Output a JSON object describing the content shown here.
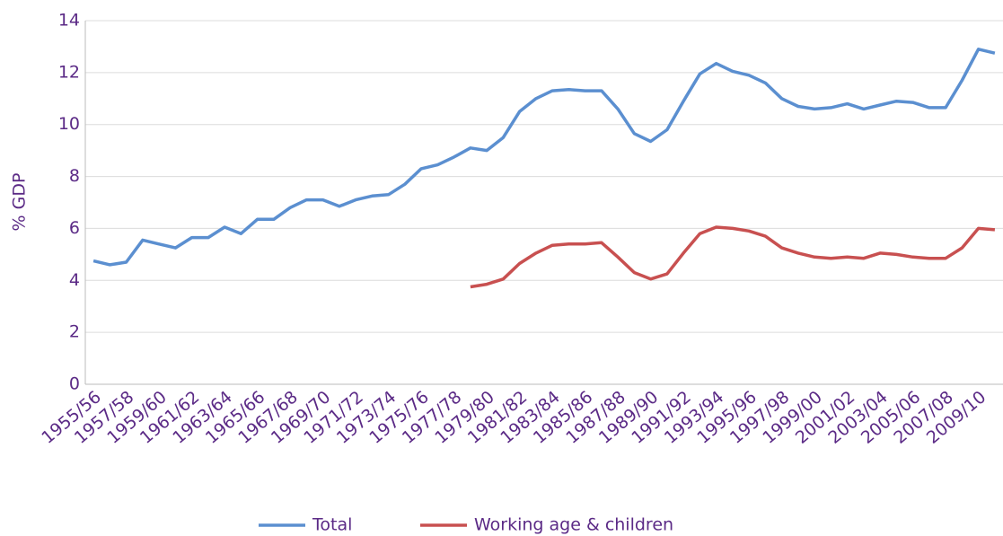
{
  "chart_data": {
    "type": "line",
    "ylabel": "% GDP",
    "categories": [
      "1955/56",
      null,
      "1957/58",
      null,
      "1959/60",
      null,
      "1961/62",
      null,
      "1963/64",
      null,
      "1965/66",
      null,
      "1967/68",
      null,
      "1969/70",
      null,
      "1971/72",
      null,
      "1973/74",
      null,
      "1975/76",
      null,
      "1977/78",
      null,
      "1979/80",
      null,
      "1981/82",
      null,
      "1983/84",
      null,
      "1985/86",
      null,
      "1987/88",
      null,
      "1989/90",
      null,
      "1991/92",
      null,
      "1993/94",
      null,
      "1995/96",
      null,
      "1997/98",
      null,
      "1999/00",
      null,
      "2001/02",
      null,
      "2003/04",
      null,
      "2005/06",
      null,
      "2007/08",
      null,
      "2009/10",
      null
    ],
    "series": [
      {
        "name": "Total",
        "color": "#5b8fd0",
        "values": [
          4.75,
          4.6,
          4.7,
          5.55,
          5.4,
          5.25,
          5.65,
          5.65,
          6.05,
          5.8,
          6.35,
          6.35,
          6.8,
          7.1,
          7.1,
          6.85,
          7.1,
          7.25,
          7.3,
          7.7,
          8.3,
          8.45,
          8.75,
          9.1,
          9.0,
          9.5,
          10.5,
          11.0,
          11.3,
          11.35,
          11.3,
          11.3,
          10.6,
          9.65,
          9.35,
          9.8,
          10.9,
          11.95,
          12.35,
          12.05,
          11.9,
          11.6,
          11.0,
          10.7,
          10.6,
          10.65,
          10.8,
          10.6,
          10.75,
          10.9,
          10.85,
          10.65,
          10.65,
          11.7,
          12.9,
          12.75
        ]
      },
      {
        "name": "Working age & children",
        "color": "#c85050",
        "values": [
          null,
          null,
          null,
          null,
          null,
          null,
          null,
          null,
          null,
          null,
          null,
          null,
          null,
          null,
          null,
          null,
          null,
          null,
          null,
          null,
          null,
          null,
          null,
          3.75,
          3.85,
          4.05,
          4.65,
          5.05,
          5.35,
          5.4,
          5.4,
          5.45,
          4.9,
          4.3,
          4.05,
          4.25,
          5.05,
          5.8,
          6.05,
          6.0,
          5.9,
          5.7,
          5.25,
          5.05,
          4.9,
          4.85,
          4.9,
          4.85,
          5.05,
          5.0,
          4.9,
          4.85,
          4.85,
          5.25,
          6.0,
          5.95
        ]
      }
    ],
    "ylim": [
      0,
      14
    ],
    "yticks": [
      0,
      2,
      4,
      6,
      8,
      10,
      12,
      14
    ],
    "grid": true,
    "legend": "bottom"
  }
}
